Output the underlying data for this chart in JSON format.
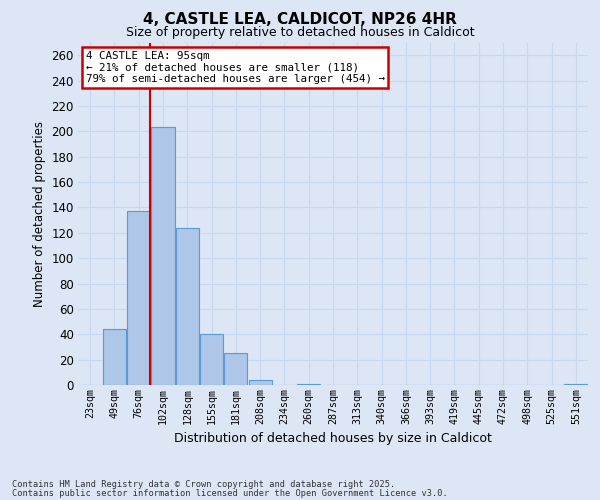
{
  "title": "4, CASTLE LEA, CALDICOT, NP26 4HR",
  "subtitle": "Size of property relative to detached houses in Caldicot",
  "xlabel": "Distribution of detached houses by size in Caldicot",
  "ylabel": "Number of detached properties",
  "categories": [
    "23sqm",
    "49sqm",
    "76sqm",
    "102sqm",
    "128sqm",
    "155sqm",
    "181sqm",
    "208sqm",
    "234sqm",
    "260sqm",
    "287sqm",
    "313sqm",
    "340sqm",
    "366sqm",
    "393sqm",
    "419sqm",
    "445sqm",
    "472sqm",
    "498sqm",
    "525sqm",
    "551sqm"
  ],
  "values": [
    0,
    44,
    137,
    203,
    124,
    40,
    25,
    4,
    0,
    1,
    0,
    0,
    0,
    0,
    0,
    0,
    0,
    0,
    0,
    0,
    1
  ],
  "bar_color": "#aec6e8",
  "bar_edge_color": "#5b9bd5",
  "grid_color": "#c8d8ee",
  "background_color": "#dce6f5",
  "annotation_line1": "4 CASTLE LEA: 95sqm",
  "annotation_line2": "← 21% of detached houses are smaller (118)",
  "annotation_line3": "79% of semi-detached houses are larger (454) →",
  "annotation_box_color": "#ffffff",
  "annotation_box_edge": "#cc0000",
  "vline_color": "#cc0000",
  "ylim": [
    0,
    270
  ],
  "yticks": [
    0,
    20,
    40,
    60,
    80,
    100,
    120,
    140,
    160,
    180,
    200,
    220,
    240,
    260
  ],
  "footnote1": "Contains HM Land Registry data © Crown copyright and database right 2025.",
  "footnote2": "Contains public sector information licensed under the Open Government Licence v3.0."
}
